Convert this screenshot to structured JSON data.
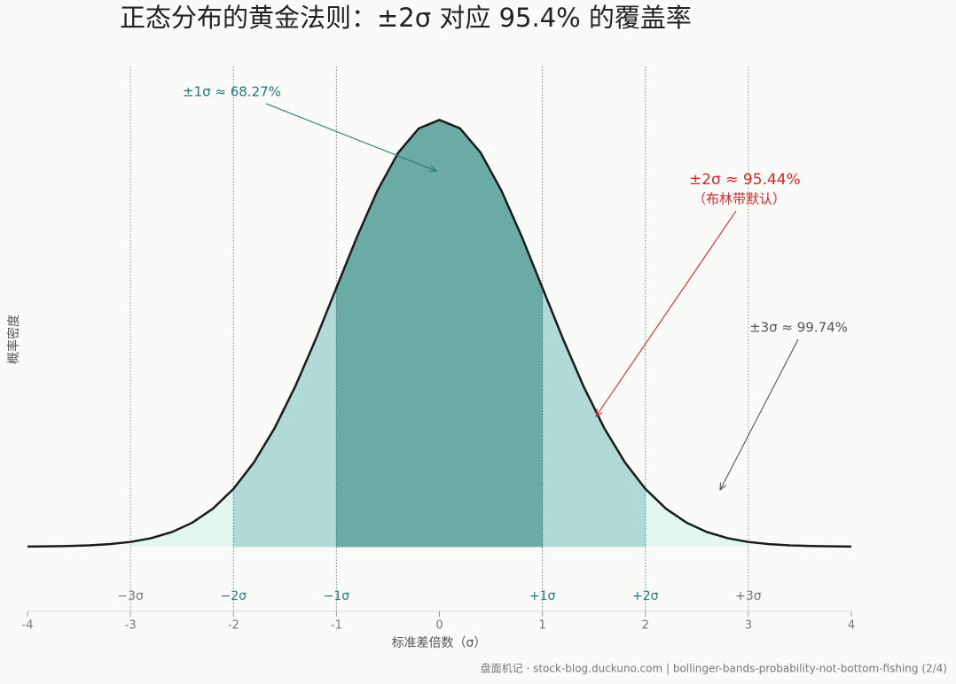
{
  "chart_data": {
    "type": "area",
    "title": "正态分布的黄金法则：±2σ 对应 95.4% 的覆盖率",
    "x_label": "标准差倍数（σ）",
    "y_label": "概率密度",
    "footer": "盘面机记 · stock-blog.duckuno.com | bollinger-bands-probability-not-bottom-fishing (2/4)",
    "x": [
      -4,
      -3.8,
      -3.6,
      -3.4,
      -3.2,
      -3,
      -2.8,
      -2.6,
      -2.4,
      -2.2,
      -2,
      -1.8,
      -1.6,
      -1.4,
      -1.2,
      -1,
      -0.8,
      -0.6,
      -0.4,
      -0.2,
      0,
      0.2,
      0.4,
      0.6,
      0.8,
      1,
      1.2,
      1.4,
      1.6,
      1.8,
      2,
      2.2,
      2.4,
      2.6,
      2.8,
      3,
      3.2,
      3.4,
      3.6,
      3.8,
      4
    ],
    "values": [
      0.0001,
      0.0003,
      0.0006,
      0.0012,
      0.0024,
      0.0044,
      0.0079,
      0.0136,
      0.0224,
      0.0355,
      0.054,
      0.079,
      0.1109,
      0.1497,
      0.1942,
      0.242,
      0.2897,
      0.3332,
      0.3683,
      0.391,
      0.3989,
      0.391,
      0.3683,
      0.3332,
      0.2897,
      0.242,
      0.1942,
      0.1497,
      0.1109,
      0.079,
      0.054,
      0.0355,
      0.0224,
      0.0136,
      0.0079,
      0.0044,
      0.0024,
      0.0012,
      0.0006,
      0.0003,
      0.0001
    ],
    "color": "#1a1a1a",
    "xlim": [
      -4,
      4
    ],
    "ylim": [
      0,
      0.4
    ],
    "xticks": [
      -4,
      -3,
      -2,
      -1,
      0,
      1,
      2,
      3,
      4
    ],
    "bands": [
      {
        "range": [
          -3,
          3
        ],
        "color": "#e2f7f2"
      },
      {
        "range": [
          -2,
          2
        ],
        "color": "#b1d9d5"
      },
      {
        "range": [
          -1,
          1
        ],
        "color": "#6aaba5"
      }
    ],
    "sigma_lines": [
      {
        "value": -3,
        "label": "−3σ",
        "color": "#777777"
      },
      {
        "value": -2,
        "label": "−2σ",
        "color": "#1f7a72"
      },
      {
        "value": -1,
        "label": "−1σ",
        "color": "#1f7a72"
      },
      {
        "value": 1,
        "label": "+1σ",
        "color": "#1f7a72"
      },
      {
        "value": 2,
        "label": "+2σ",
        "color": "#1f7a72"
      },
      {
        "value": 3,
        "label": "+3σ",
        "color": "#777777"
      }
    ],
    "annotations": [
      {
        "text": "±1σ ≈ 68.27%",
        "color": "#1f7a72"
      },
      {
        "text": "±2σ ≈ 95.44%",
        "subtext": "（布林带默认）",
        "color": "#d62828"
      },
      {
        "text": "±3σ ≈ 99.74%",
        "color": "#555555"
      }
    ]
  }
}
